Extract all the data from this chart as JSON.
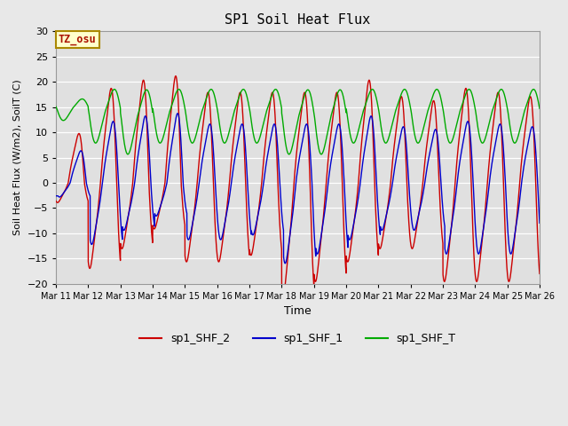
{
  "title": "SP1 Soil Heat Flux",
  "xlabel": "Time",
  "ylabel": "Soil Heat Flux (W/m2), SoilT (C)",
  "ylim": [
    -20,
    30
  ],
  "xlim": [
    0,
    15
  ],
  "color_shf2": "#cc0000",
  "color_shf1": "#0000cc",
  "color_shft": "#00aa00",
  "legend_labels": [
    "sp1_SHF_2",
    "sp1_SHF_1",
    "sp1_SHF_T"
  ],
  "annotation_text": "TZ_osu",
  "annotation_color": "#aa1100",
  "annotation_bg": "#ffffcc",
  "annotation_border": "#aa8800",
  "yticks": [
    -20,
    -15,
    -10,
    -5,
    0,
    5,
    10,
    15,
    20,
    25,
    30
  ],
  "xtick_labels": [
    "Mar 11",
    "Mar 12",
    "Mar 13",
    "Mar 14",
    "Mar 15",
    "Mar 16",
    "Mar 17",
    "Mar 18",
    "Mar 19",
    "Mar 20",
    "Mar 21",
    "Mar 22",
    "Mar 23",
    "Mar 24",
    "Mar 25",
    "Mar 26"
  ],
  "fig_bg": "#e8e8e8",
  "plot_bg": "#e0e0e0"
}
